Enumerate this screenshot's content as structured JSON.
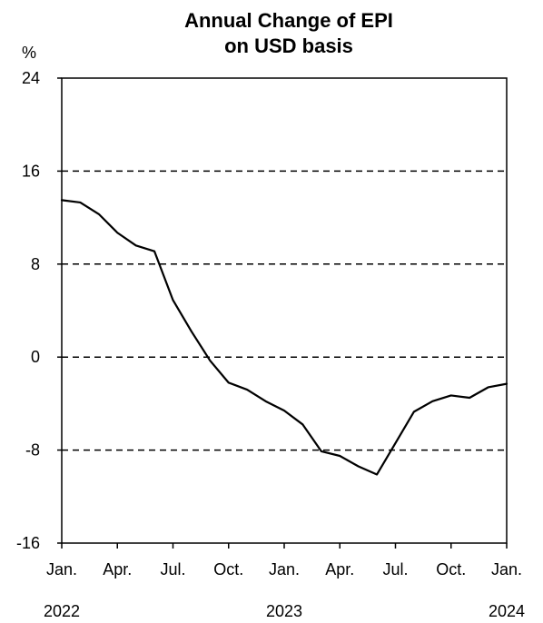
{
  "chart_data": {
    "type": "line",
    "title_lines": [
      "Annual Change of EPI",
      "on USD basis"
    ],
    "ylabel": "%",
    "ylim": [
      -16,
      24
    ],
    "yticks": [
      24,
      16,
      8,
      0,
      -8,
      -16
    ],
    "grid_values": [
      16,
      8,
      0,
      -8
    ],
    "grid_style": "dashed",
    "x_tick_labels": [
      "Jan.",
      "Apr.",
      "Jul.",
      "Oct.",
      "Jan.",
      "Apr.",
      "Jul.",
      "Oct.",
      "Jan."
    ],
    "year_labels": [
      {
        "label": "2022",
        "month_index": 0
      },
      {
        "label": "2023",
        "month_index": 12
      },
      {
        "label": "2024",
        "month_index": 24
      }
    ],
    "x_range": [
      0,
      24
    ],
    "series": [
      {
        "values": [
          13.5,
          13.3,
          12.3,
          10.7,
          9.6,
          9.1,
          4.9,
          2.2,
          -0.3,
          -2.2,
          -2.8,
          -3.8,
          -4.6,
          -5.8,
          -8.1,
          -8.5,
          -9.4,
          -10.1,
          -7.4,
          -4.7,
          -3.8,
          -3.3,
          -3.5,
          -2.6,
          -2.3
        ],
        "color": "#000000"
      }
    ]
  }
}
